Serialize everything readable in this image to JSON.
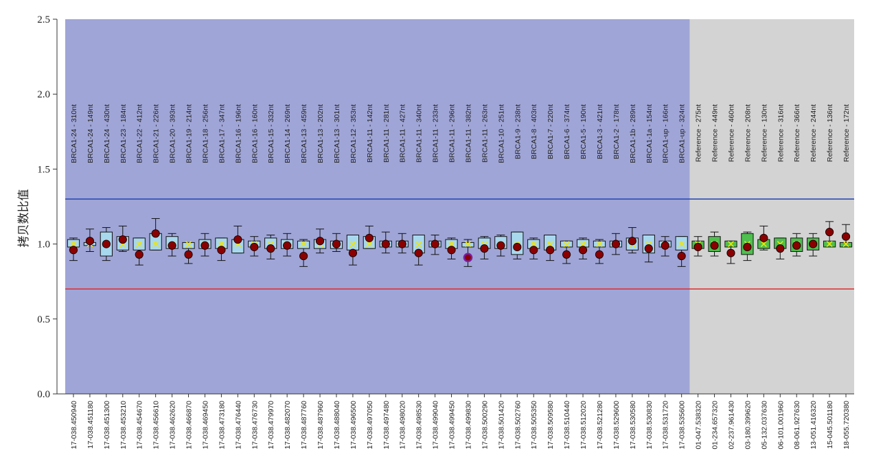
{
  "chart_data": {
    "type": "box",
    "ylabel": "拷贝数比值",
    "ylim": [
      0,
      2.5
    ],
    "yticks": [
      "0.0",
      "0.5",
      "1.0",
      "1.5",
      "2.0",
      "2.5"
    ],
    "ytick_values": [
      0,
      0.5,
      1.0,
      1.5,
      2.0,
      2.5
    ],
    "threshold_upper": 1.3,
    "threshold_lower": 0.7,
    "colors": {
      "brca_region": "#9fa5d6",
      "reference_region": "#d3d3d3",
      "brca_box": "#a8d8ee",
      "reference_box": "#4fbf4f",
      "upper_line": "#2b4bb5",
      "lower_line": "#e02a2a",
      "point_fill": "#8b0000",
      "point_highlight": "#7a1fa8",
      "mean_marker": "#f2e600"
    },
    "groups": [
      {
        "name": "BRCA1",
        "count": 38
      },
      {
        "name": "Reference",
        "count": 10
      }
    ],
    "samples": [
      {
        "sample": "17-038.450940",
        "probe": "BRCA1-24 - 310nt",
        "value": 0.96,
        "box": [
          0.98,
          1.03
        ],
        "whisker": [
          0.89,
          1.04
        ],
        "group": "BRCA1"
      },
      {
        "sample": "17-038.451180",
        "probe": "BRCA1-24 - 149nt",
        "value": 1.02,
        "box": [
          0.99,
          1.01
        ],
        "whisker": [
          0.95,
          1.1
        ],
        "group": "BRCA1"
      },
      {
        "sample": "17-038.451300",
        "probe": "BRCA1-24 - 430nt",
        "value": 1.0,
        "box": [
          0.92,
          1.08
        ],
        "whisker": [
          0.89,
          1.11
        ],
        "group": "BRCA1"
      },
      {
        "sample": "17-038.453210",
        "probe": "BRCA1-23 - 184nt",
        "value": 1.03,
        "box": [
          0.96,
          1.05
        ],
        "whisker": [
          0.95,
          1.12
        ],
        "group": "BRCA1"
      },
      {
        "sample": "17-038.454670",
        "probe": "BRCA1-22 - 412nt",
        "value": 0.93,
        "box": [
          0.96,
          1.04
        ],
        "whisker": [
          0.86,
          1.04
        ],
        "group": "BRCA1"
      },
      {
        "sample": "17-038.456610",
        "probe": "BRCA1-21 - 226nt",
        "value": 1.07,
        "box": [
          0.96,
          1.07
        ],
        "whisker": [
          0.96,
          1.17
        ],
        "group": "BRCA1"
      },
      {
        "sample": "17-038.462620",
        "probe": "BRCA1-20 - 393nt",
        "value": 0.99,
        "box": [
          0.97,
          1.05
        ],
        "whisker": [
          0.92,
          1.07
        ],
        "group": "BRCA1"
      },
      {
        "sample": "17-038.466870",
        "probe": "BRCA1-19 - 214nt",
        "value": 0.93,
        "box": [
          0.97,
          1.01
        ],
        "whisker": [
          0.87,
          1.01
        ],
        "group": "BRCA1"
      },
      {
        "sample": "17-038.469450",
        "probe": "BRCA1-18 - 256nt",
        "value": 0.99,
        "box": [
          0.97,
          1.03
        ],
        "whisker": [
          0.92,
          1.07
        ],
        "group": "BRCA1"
      },
      {
        "sample": "17-038.473180",
        "probe": "BRCA1-17 - 347nt",
        "value": 0.96,
        "box": [
          0.97,
          1.04
        ],
        "whisker": [
          0.89,
          1.04
        ],
        "group": "BRCA1"
      },
      {
        "sample": "17-038.476440",
        "probe": "BRCA1-16 - 196nt",
        "value": 1.03,
        "box": [
          0.94,
          1.03
        ],
        "whisker": [
          0.94,
          1.12
        ],
        "group": "BRCA1"
      },
      {
        "sample": "17-038.476730",
        "probe": "BRCA1-16 - 160nt",
        "value": 0.98,
        "box": [
          0.98,
          1.02
        ],
        "whisker": [
          0.92,
          1.05
        ],
        "group": "BRCA1"
      },
      {
        "sample": "17-038.479970",
        "probe": "BRCA1-15 - 332nt",
        "value": 0.97,
        "box": [
          0.97,
          1.04
        ],
        "whisker": [
          0.9,
          1.06
        ],
        "group": "BRCA1"
      },
      {
        "sample": "17-038.482070",
        "probe": "BRCA1-14 - 269nt",
        "value": 0.99,
        "box": [
          0.97,
          1.03
        ],
        "whisker": [
          0.92,
          1.07
        ],
        "group": "BRCA1"
      },
      {
        "sample": "17-038.487760",
        "probe": "BRCA1-13 - 459nt",
        "value": 0.92,
        "box": [
          0.97,
          1.02
        ],
        "whisker": [
          0.85,
          1.03
        ],
        "group": "BRCA1"
      },
      {
        "sample": "17-038.487960",
        "probe": "BRCA1-13 - 202nt",
        "value": 1.02,
        "box": [
          0.97,
          1.03
        ],
        "whisker": [
          0.94,
          1.1
        ],
        "group": "BRCA1"
      },
      {
        "sample": "17-038.488040",
        "probe": "BRCA1-13 - 301nt",
        "value": 1.0,
        "box": [
          0.97,
          1.02
        ],
        "whisker": [
          0.95,
          1.07
        ],
        "group": "BRCA1"
      },
      {
        "sample": "17-038.496500",
        "probe": "BRCA1-12 - 353nt",
        "value": 0.94,
        "box": [
          0.96,
          1.06
        ],
        "whisker": [
          0.86,
          1.06
        ],
        "group": "BRCA1"
      },
      {
        "sample": "17-038.497050",
        "probe": "BRCA1-11 - 142nt",
        "value": 1.04,
        "box": [
          0.97,
          1.05
        ],
        "whisker": [
          0.97,
          1.12
        ],
        "group": "BRCA1"
      },
      {
        "sample": "17-038.497480",
        "probe": "BRCA1-11 - 281nt",
        "value": 1.0,
        "box": [
          0.98,
          1.02
        ],
        "whisker": [
          0.94,
          1.08
        ],
        "group": "BRCA1"
      },
      {
        "sample": "17-038.498020",
        "probe": "BRCA1-11 - 427nt",
        "value": 1.0,
        "box": [
          0.98,
          1.02
        ],
        "whisker": [
          0.94,
          1.07
        ],
        "group": "BRCA1"
      },
      {
        "sample": "17-038.498530",
        "probe": "BRCA1-11 - 340nt",
        "value": 0.94,
        "box": [
          0.94,
          1.06
        ],
        "whisker": [
          0.86,
          1.06
        ],
        "group": "BRCA1"
      },
      {
        "sample": "17-038.499040",
        "probe": "BRCA1-11 - 233nt",
        "value": 1.0,
        "box": [
          0.98,
          1.02
        ],
        "whisker": [
          0.93,
          1.06
        ],
        "group": "BRCA1"
      },
      {
        "sample": "17-038.499450",
        "probe": "BRCA1-11 - 296nt",
        "value": 0.96,
        "box": [
          0.97,
          1.03
        ],
        "whisker": [
          0.9,
          1.04
        ],
        "group": "BRCA1"
      },
      {
        "sample": "17-038.499830",
        "probe": "BRCA1-11 - 382nt",
        "value": 0.91,
        "box": [
          0.98,
          1.01
        ],
        "whisker": [
          0.85,
          1.03
        ],
        "group": "BRCA1",
        "highlight": true
      },
      {
        "sample": "17-038.500290",
        "probe": "BRCA1-11 - 263nt",
        "value": 0.97,
        "box": [
          0.97,
          1.04
        ],
        "whisker": [
          0.9,
          1.05
        ],
        "group": "BRCA1"
      },
      {
        "sample": "17-038.501420",
        "probe": "BRCA1-10 - 251nt",
        "value": 0.99,
        "box": [
          0.97,
          1.05
        ],
        "whisker": [
          0.92,
          1.06
        ],
        "group": "BRCA1"
      },
      {
        "sample": "17-038.502760",
        "probe": "BRCA1-9 - 238nt",
        "value": 0.98,
        "box": [
          0.93,
          1.08
        ],
        "whisker": [
          0.9,
          1.08
        ],
        "group": "BRCA1"
      },
      {
        "sample": "17-038.505350",
        "probe": "BRCA1-8 - 403nt",
        "value": 0.96,
        "box": [
          0.97,
          1.03
        ],
        "whisker": [
          0.9,
          1.04
        ],
        "group": "BRCA1"
      },
      {
        "sample": "17-038.509580",
        "probe": "BRCA1-7 - 220nt",
        "value": 0.96,
        "box": [
          0.96,
          1.06
        ],
        "whisker": [
          0.89,
          1.06
        ],
        "group": "BRCA1"
      },
      {
        "sample": "17-038.510440",
        "probe": "BRCA1-6 - 374nt",
        "value": 0.93,
        "box": [
          0.98,
          1.02
        ],
        "whisker": [
          0.87,
          1.02
        ],
        "group": "BRCA1"
      },
      {
        "sample": "17-038.512020",
        "probe": "BRCA1-5 - 190nt",
        "value": 0.96,
        "box": [
          0.98,
          1.03
        ],
        "whisker": [
          0.9,
          1.04
        ],
        "group": "BRCA1"
      },
      {
        "sample": "17-038.521280",
        "probe": "BRCA1-3 - 421nt",
        "value": 0.93,
        "box": [
          0.98,
          1.02
        ],
        "whisker": [
          0.87,
          1.03
        ],
        "group": "BRCA1"
      },
      {
        "sample": "17-038.529600",
        "probe": "BRCA1-2 - 178nt",
        "value": 1.0,
        "box": [
          0.98,
          1.02
        ],
        "whisker": [
          0.93,
          1.07
        ],
        "group": "BRCA1"
      },
      {
        "sample": "17-038.530580",
        "probe": "BRCA1-1b - 289nt",
        "value": 1.02,
        "box": [
          0.96,
          1.04
        ],
        "whisker": [
          0.94,
          1.11
        ],
        "group": "BRCA1"
      },
      {
        "sample": "17-038.530830",
        "probe": "BRCA1-1a - 154nt",
        "value": 0.97,
        "box": [
          0.94,
          1.06
        ],
        "whisker": [
          0.88,
          1.06
        ],
        "group": "BRCA1"
      },
      {
        "sample": "17-038.531720",
        "probe": "BRCA1-up - 166nt",
        "value": 0.99,
        "box": [
          0.98,
          1.02
        ],
        "whisker": [
          0.92,
          1.05
        ],
        "group": "BRCA1"
      },
      {
        "sample": "17-038.535600",
        "probe": "BRCA1-up - 324nt",
        "value": 0.92,
        "box": [
          0.96,
          1.05
        ],
        "whisker": [
          0.85,
          1.05
        ],
        "group": "BRCA1"
      },
      {
        "sample": "01-047.538320",
        "probe": "Reference - 275nt",
        "value": 0.98,
        "box": [
          0.97,
          1.02
        ],
        "whisker": [
          0.92,
          1.05
        ],
        "group": "Reference"
      },
      {
        "sample": "01-234.657320",
        "probe": "Reference - 449nt",
        "value": 0.99,
        "box": [
          0.95,
          1.05
        ],
        "whisker": [
          0.92,
          1.08
        ],
        "group": "Reference"
      },
      {
        "sample": "02-237.961430",
        "probe": "Reference - 460nt",
        "value": 0.94,
        "box": [
          0.98,
          1.02
        ],
        "whisker": [
          0.87,
          1.02
        ],
        "group": "Reference"
      },
      {
        "sample": "03-180.399620",
        "probe": "Reference - 208nt",
        "value": 0.98,
        "box": [
          0.93,
          1.07
        ],
        "whisker": [
          0.89,
          1.08
        ],
        "group": "Reference"
      },
      {
        "sample": "05-132.037630",
        "probe": "Reference - 130nt",
        "value": 1.04,
        "box": [
          0.97,
          1.03
        ],
        "whisker": [
          0.96,
          1.12
        ],
        "group": "Reference"
      },
      {
        "sample": "06-101.001960",
        "probe": "Reference - 316nt",
        "value": 0.97,
        "box": [
          0.97,
          1.04
        ],
        "whisker": [
          0.9,
          1.04
        ],
        "group": "Reference"
      },
      {
        "sample": "08-061.927630",
        "probe": "Reference - 366nt",
        "value": 0.99,
        "box": [
          0.95,
          1.04
        ],
        "whisker": [
          0.92,
          1.07
        ],
        "group": "Reference"
      },
      {
        "sample": "13-051.416320",
        "probe": "Reference - 244nt",
        "value": 1.0,
        "box": [
          0.96,
          1.04
        ],
        "whisker": [
          0.92,
          1.07
        ],
        "group": "Reference"
      },
      {
        "sample": "15-045.501180",
        "probe": "Reference - 136nt",
        "value": 1.08,
        "box": [
          0.98,
          1.02
        ],
        "whisker": [
          0.98,
          1.15
        ],
        "group": "Reference"
      },
      {
        "sample": "18-055.720380",
        "probe": "Reference - 172nt",
        "value": 1.05,
        "box": [
          0.98,
          1.01
        ],
        "whisker": [
          0.98,
          1.13
        ],
        "group": "Reference"
      }
    ]
  }
}
